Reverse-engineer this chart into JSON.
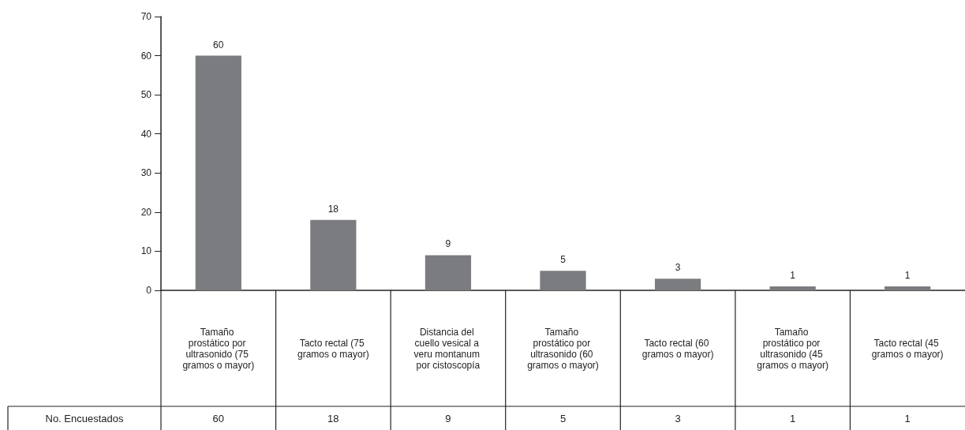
{
  "chart_data": {
    "type": "bar",
    "categories": [
      "Tamaño prostático por ultrasonido (75 gramos o mayor)",
      "Tacto rectal (75 gramos o mayor)",
      "Distancia del cuello vesical a veru montanum por cistoscopía",
      "Tamaño prostático por ultrasonido (60 gramos o mayor)",
      "Tacto rectal (60 gramos o mayor)",
      "Tamaño prostático por ultrasonido (45 gramos o mayor)",
      "Tacto rectal (45 gramos o mayor)"
    ],
    "values": [
      60,
      18,
      9,
      5,
      3,
      1,
      1
    ],
    "value_labels": [
      "60",
      "18",
      "9",
      "5",
      "3",
      "1",
      "1"
    ],
    "color": "#7b7c80",
    "ylim": [
      0,
      70
    ],
    "yticks": [
      0,
      10,
      20,
      30,
      40,
      50,
      60,
      70
    ],
    "grid": false,
    "data_labels": true,
    "annotations": [
      "No. Encuestados"
    ]
  }
}
